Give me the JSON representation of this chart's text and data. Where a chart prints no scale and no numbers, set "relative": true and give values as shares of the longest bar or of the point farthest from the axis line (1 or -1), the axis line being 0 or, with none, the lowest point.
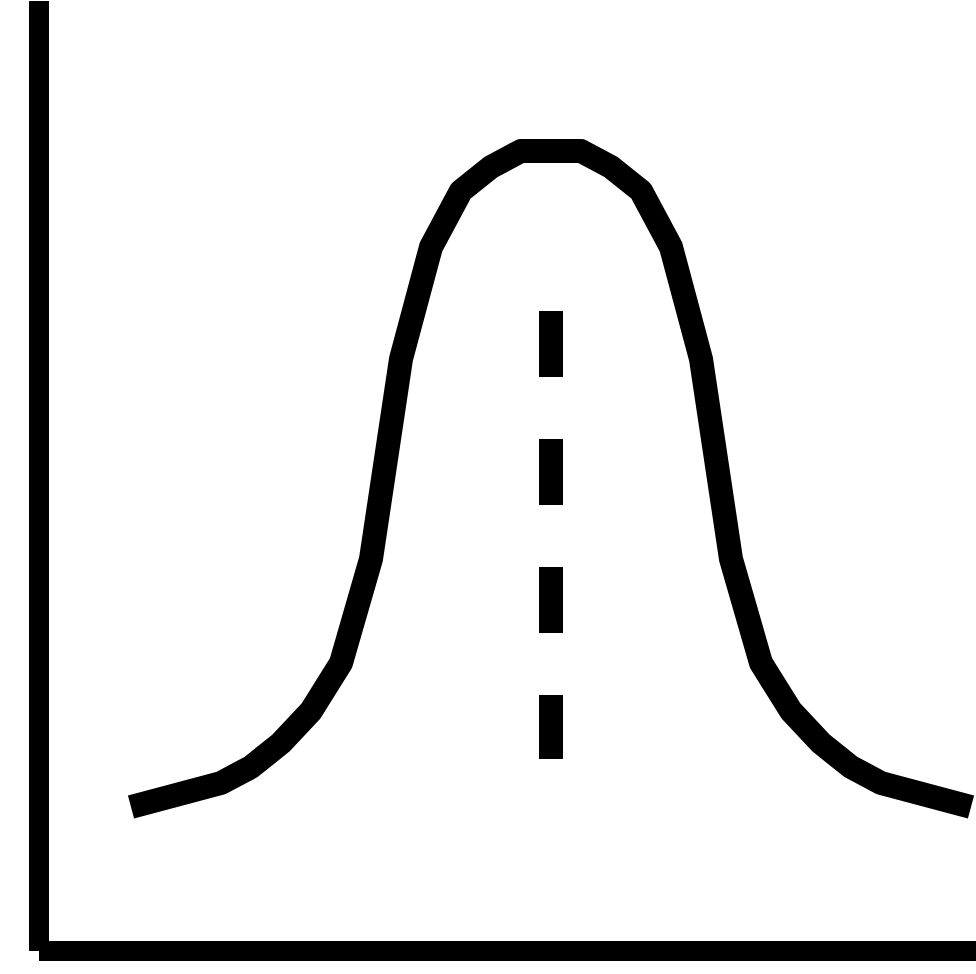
{
  "chart_data": {
    "type": "line",
    "relative": true,
    "categories": [
      null,
      null,
      null,
      null,
      null,
      null,
      null,
      null,
      null,
      null,
      null,
      null,
      null,
      null,
      null,
      null,
      null,
      null,
      null,
      null,
      null,
      null,
      null,
      null,
      null,
      null,
      null,
      null,
      null
    ],
    "series": [
      {
        "color": "#000000",
        "values": [
          0.18,
          0.19,
          0.2,
          0.21,
          0.23,
          0.26,
          0.3,
          0.36,
          0.49,
          0.74,
          0.88,
          0.95,
          0.98,
          1.0,
          1.0,
          1.0,
          0.98,
          0.95,
          0.88,
          0.74,
          0.49,
          0.36,
          0.3,
          0.26,
          0.23,
          0.21,
          0.2,
          0.19,
          0.18
        ]
      }
    ]
  }
}
